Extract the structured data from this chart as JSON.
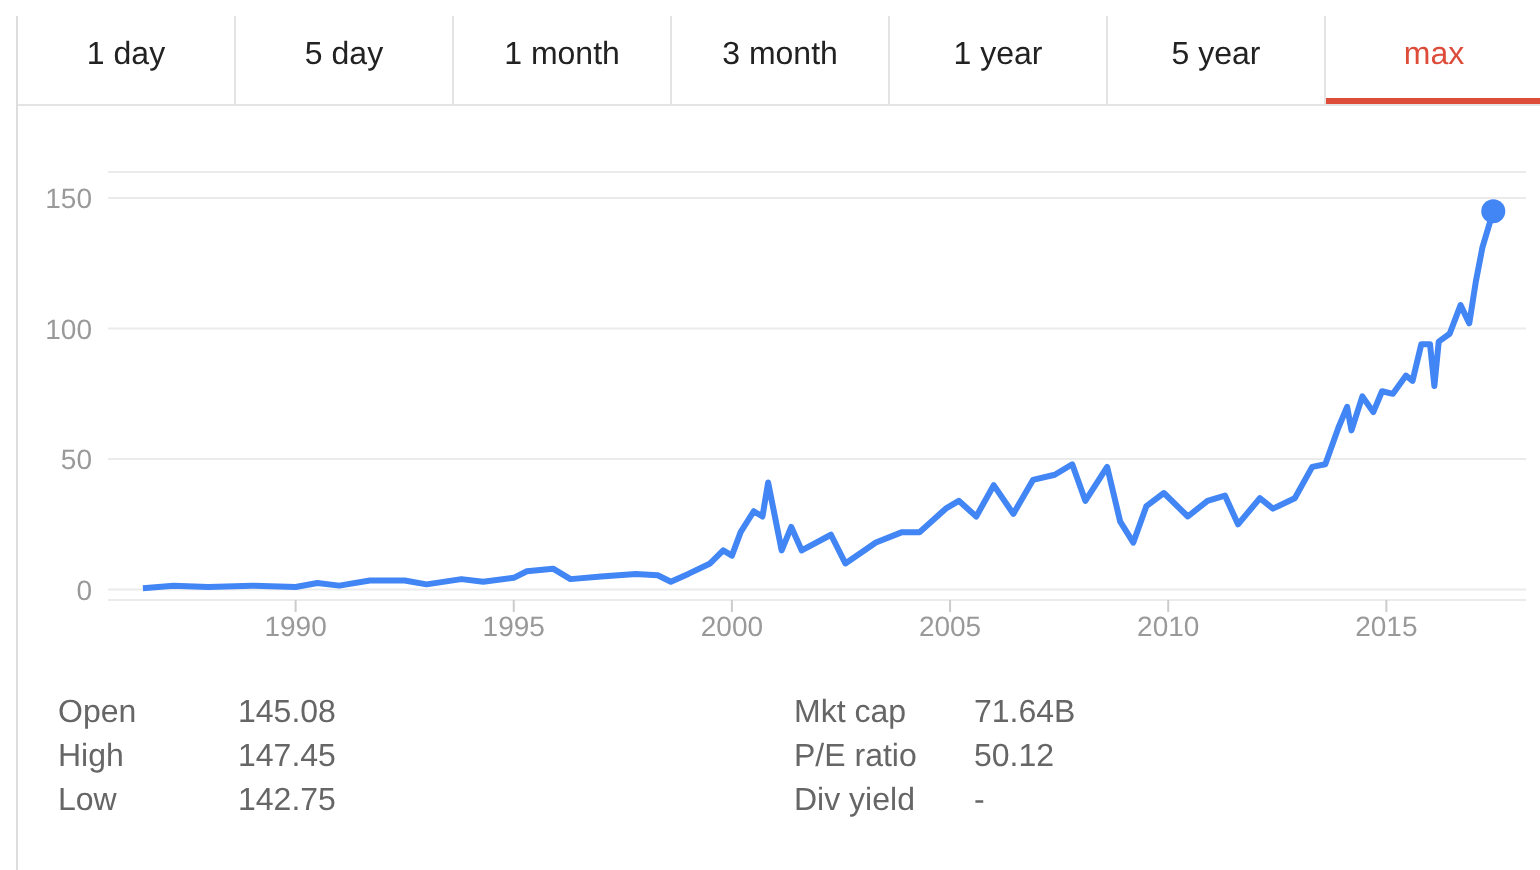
{
  "chart_data": {
    "type": "line",
    "x": [
      1986.5,
      1987.2,
      1988,
      1989,
      1990,
      1990.5,
      1991,
      1991.7,
      1992.5,
      1993,
      1993.8,
      1994.3,
      1995,
      1995.3,
      1995.9,
      1996.3,
      1997,
      1997.8,
      1998.3,
      1998.6,
      1999,
      1999.5,
      1999.8,
      2000,
      2000.2,
      2000.5,
      2000.7,
      2000.83,
      2001.14,
      2001.36,
      2001.6,
      2002.27,
      2002.6,
      2003.3,
      2003.9,
      2004.3,
      2004.9,
      2005.2,
      2005.6,
      2006,
      2006.45,
      2006.9,
      2007.4,
      2007.8,
      2008.1,
      2008.6,
      2008.9,
      2009.2,
      2009.5,
      2009.9,
      2010.45,
      2010.9,
      2011.3,
      2011.6,
      2012.1,
      2012.4,
      2012.9,
      2013.3,
      2013.6,
      2013.9,
      2014.1,
      2014.2,
      2014.45,
      2014.7,
      2014.9,
      2015.15,
      2015.45,
      2015.6,
      2015.8,
      2016,
      2016.1,
      2016.2,
      2016.45,
      2016.7,
      2016.9,
      2017.05,
      2017.2,
      2017.45
    ],
    "series": [
      {
        "color": "#4285f4",
        "values": [
          0.5,
          1.5,
          1,
          1.5,
          1,
          2.5,
          1.5,
          3.5,
          3.5,
          2,
          4,
          3,
          4.5,
          7,
          8,
          4,
          5,
          6,
          5.5,
          3,
          6,
          10,
          15,
          13,
          22,
          30,
          28,
          41,
          15,
          24,
          15,
          21,
          10,
          18,
          22,
          22,
          31,
          34,
          28,
          40,
          29,
          42,
          44,
          48,
          34,
          47,
          26,
          18,
          32,
          37,
          28,
          34,
          36,
          25,
          35,
          31,
          35,
          47,
          48,
          62,
          70,
          61,
          74,
          68,
          76,
          75,
          82,
          80,
          94,
          94,
          78,
          95,
          98,
          109,
          102,
          118,
          131,
          145
        ]
      }
    ],
    "xlim": [
      1985.7,
      2018.2
    ],
    "xticks": [
      1990,
      1995,
      2000,
      2005,
      2010,
      2015
    ],
    "ylim": [
      -4,
      160
    ],
    "yticks": [
      0,
      50,
      100,
      150
    ],
    "grid": "y",
    "legend": false,
    "marker": "none",
    "line_style": "solid",
    "annotations": [
      "1 day",
      "5 day",
      "1 month",
      "3 month",
      "1 year",
      "5 year",
      "max",
      "Open",
      "145.08",
      "High",
      "147.45",
      "Low",
      "142.75",
      "Mkt cap",
      "71.64B",
      "P/E ratio",
      "50.12",
      "Div yield",
      "-"
    ]
  }
}
